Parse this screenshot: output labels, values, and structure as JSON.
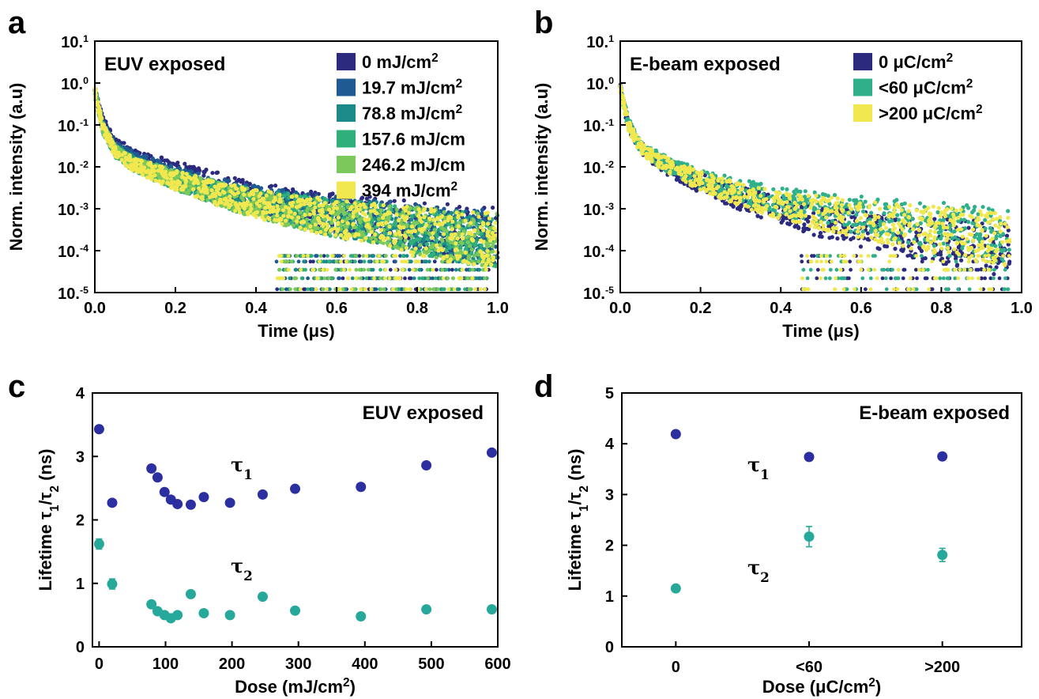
{
  "chart_data": [
    {
      "panel": "a",
      "type": "scatter",
      "title": "EUV exposed",
      "xlabel": "Time (μs)",
      "ylabel": "Norm. intensity (a.u)",
      "xlim": [
        0,
        1.0
      ],
      "ylim": [
        1e-05,
        10
      ],
      "yscale": "log",
      "xticks": [
        "0.0",
        "0.2",
        "0.4",
        "0.6",
        "0.8",
        "1.0"
      ],
      "yticks": [
        "10.1",
        "10.0",
        "10.-1",
        "10.-2",
        "10.-3",
        "10.-4",
        "10.-5"
      ],
      "legend_position": "top-right",
      "colors": [
        "#2b2a7e",
        "#1f5a92",
        "#1d8a8a",
        "#2fb07a",
        "#7cc85a",
        "#f0e84e"
      ],
      "series": [
        {
          "name": "0 mJ/cm2",
          "x": [
            0,
            0.02,
            0.05,
            0.1,
            0.2,
            0.3,
            0.4,
            0.5,
            0.6,
            0.7,
            0.8,
            0.9,
            1.0
          ],
          "y": [
            0.8,
            0.12,
            0.035,
            0.018,
            0.008,
            0.004,
            0.002,
            0.0012,
            0.0008,
            0.0006,
            0.0004,
            0.0003,
            0.00025
          ]
        },
        {
          "name": "19.7 mJ/cm2",
          "x": [
            0,
            0.02,
            0.05,
            0.1,
            0.2,
            0.3,
            0.4,
            0.5,
            0.6,
            0.7,
            0.8,
            0.9,
            1.0
          ],
          "y": [
            0.7,
            0.1,
            0.03,
            0.015,
            0.006,
            0.003,
            0.0016,
            0.001,
            0.0007,
            0.0005,
            0.00035,
            0.00025,
            0.0002
          ]
        },
        {
          "name": "78.8 mJ/cm2",
          "x": [
            0,
            0.02,
            0.05,
            0.1,
            0.2,
            0.3,
            0.4,
            0.5,
            0.6,
            0.7,
            0.8,
            0.9,
            1.0
          ],
          "y": [
            0.65,
            0.09,
            0.025,
            0.012,
            0.005,
            0.0025,
            0.0014,
            0.0009,
            0.0006,
            0.00045,
            0.0003,
            0.00022,
            0.00018
          ]
        },
        {
          "name": "157.6 mJ/cm",
          "x": [
            0,
            0.02,
            0.05,
            0.1,
            0.2,
            0.3,
            0.4,
            0.5,
            0.6,
            0.7,
            0.8,
            0.9,
            1.0
          ],
          "y": [
            0.6,
            0.085,
            0.024,
            0.011,
            0.0048,
            0.0024,
            0.0013,
            0.00085,
            0.00058,
            0.00042,
            0.0003,
            0.00021,
            0.00017
          ]
        },
        {
          "name": "246.2 mJ/cm",
          "x": [
            0,
            0.02,
            0.05,
            0.1,
            0.2,
            0.3,
            0.4,
            0.5,
            0.6,
            0.7,
            0.8,
            0.9,
            1.0
          ],
          "y": [
            0.6,
            0.085,
            0.024,
            0.011,
            0.0048,
            0.0024,
            0.0013,
            0.00085,
            0.00058,
            0.00042,
            0.0003,
            0.00021,
            0.00017
          ]
        },
        {
          "name": "394 mJ/cm2",
          "x": [
            0,
            0.02,
            0.05,
            0.1,
            0.2,
            0.3,
            0.4,
            0.5,
            0.6,
            0.7,
            0.8,
            0.9,
            1.0
          ],
          "y": [
            0.6,
            0.085,
            0.024,
            0.011,
            0.0048,
            0.0024,
            0.0013,
            0.00085,
            0.00058,
            0.00042,
            0.0003,
            0.00021,
            0.00017
          ]
        }
      ]
    },
    {
      "panel": "b",
      "type": "scatter",
      "title": "E-beam exposed",
      "xlabel": "Time (μs)",
      "ylabel": "Norm. intensity (a.u)",
      "xlim": [
        0,
        1.0
      ],
      "ylim": [
        1e-05,
        10
      ],
      "yscale": "log",
      "xticks": [
        "0.0",
        "0.2",
        "0.4",
        "0.6",
        "0.8",
        "1.0"
      ],
      "yticks": [
        "10.1",
        "10.0",
        "10.-1",
        "10.-2",
        "10.-3",
        "10.-4",
        "10.-5"
      ],
      "legend_position": "top-right",
      "colors": [
        "#2b2a7e",
        "#2fb08a",
        "#f0e84e"
      ],
      "series": [
        {
          "name": "0 μC/cm2",
          "x": [
            0,
            0.02,
            0.05,
            0.1,
            0.2,
            0.3,
            0.4,
            0.5,
            0.6,
            0.7,
            0.8,
            0.9,
            0.97
          ],
          "y": [
            0.8,
            0.1,
            0.03,
            0.012,
            0.004,
            0.0018,
            0.0009,
            0.0005,
            0.00035,
            0.00025,
            0.00018,
            0.00013,
            0.0001
          ]
        },
        {
          "name": "<60 μC/cm2",
          "x": [
            0,
            0.02,
            0.05,
            0.1,
            0.2,
            0.3,
            0.4,
            0.5,
            0.6,
            0.7,
            0.8,
            0.9,
            0.97
          ],
          "y": [
            0.8,
            0.11,
            0.032,
            0.014,
            0.005,
            0.0026,
            0.0015,
            0.001,
            0.0007,
            0.0005,
            0.0004,
            0.0003,
            0.00025
          ]
        },
        {
          "name": ">200 μC/cm2",
          "x": [
            0,
            0.02,
            0.05,
            0.1,
            0.2,
            0.3,
            0.4,
            0.5,
            0.6,
            0.7,
            0.8,
            0.9,
            0.97
          ],
          "y": [
            0.8,
            0.1,
            0.03,
            0.013,
            0.0045,
            0.0022,
            0.0012,
            0.0008,
            0.00055,
            0.0004,
            0.0003,
            0.00022,
            0.00018
          ]
        }
      ]
    },
    {
      "panel": "c",
      "type": "scatter",
      "title": "EUV exposed",
      "xlabel": "Dose (mJ/cm2)",
      "ylabel": "Lifetime τ1/τ2 (ns)",
      "xlim": [
        -10,
        600
      ],
      "ylim": [
        0,
        4
      ],
      "xticks": [
        "0",
        "100",
        "200",
        "300",
        "400",
        "500",
        "600"
      ],
      "yticks": [
        "0",
        "1",
        "2",
        "3",
        "4"
      ],
      "annotations": [
        "τ1",
        "τ2"
      ],
      "colors": [
        "#2b2fa0",
        "#26a89a"
      ],
      "series": [
        {
          "name": "τ1",
          "x": [
            0,
            19.7,
            78.8,
            88,
            98.5,
            108,
            118,
            138,
            157.6,
            197,
            246.2,
            295,
            394,
            492.5,
            591
          ],
          "y": [
            3.43,
            2.27,
            2.81,
            2.67,
            2.44,
            2.32,
            2.25,
            2.24,
            2.36,
            2.27,
            2.4,
            2.49,
            2.52,
            2.86,
            3.06
          ],
          "yerr": [
            0.03,
            0.03,
            0.03,
            0.03,
            0.03,
            0.03,
            0.03,
            0.03,
            0.03,
            0.03,
            0.03,
            0.03,
            0.03,
            0.03,
            0.03
          ]
        },
        {
          "name": "τ2",
          "x": [
            0,
            19.7,
            78.8,
            88,
            98.5,
            108,
            118,
            138,
            157.6,
            197,
            246.2,
            295,
            394,
            492.5,
            591
          ],
          "y": [
            1.62,
            0.99,
            0.67,
            0.56,
            0.5,
            0.45,
            0.5,
            0.83,
            0.53,
            0.5,
            0.79,
            0.57,
            0.48,
            0.59,
            0.59
          ],
          "yerr": [
            0.08,
            0.08,
            0.04,
            0.04,
            0.04,
            0.04,
            0.04,
            0.04,
            0.04,
            0.04,
            0.04,
            0.04,
            0.04,
            0.04,
            0.04
          ]
        }
      ]
    },
    {
      "panel": "d",
      "type": "scatter",
      "title": "E-beam exposed",
      "xlabel": "Dose (μC/cm2)",
      "ylabel": "Lifetime τ1/τ2 (ns)",
      "categories": [
        "0",
        "<60",
        ">200"
      ],
      "ylim": [
        0,
        5
      ],
      "yticks": [
        "0",
        "1",
        "2",
        "3",
        "4",
        "5"
      ],
      "annotations": [
        "τ1",
        "τ2"
      ],
      "colors": [
        "#2b2fa0",
        "#26a89a"
      ],
      "series": [
        {
          "name": "τ1",
          "values": [
            4.19,
            3.74,
            3.75
          ],
          "yerr": [
            0.03,
            0.03,
            0.03
          ]
        },
        {
          "name": "τ2",
          "values": [
            1.15,
            2.17,
            1.81
          ],
          "yerr": [
            0.04,
            0.2,
            0.13
          ]
        }
      ]
    }
  ]
}
